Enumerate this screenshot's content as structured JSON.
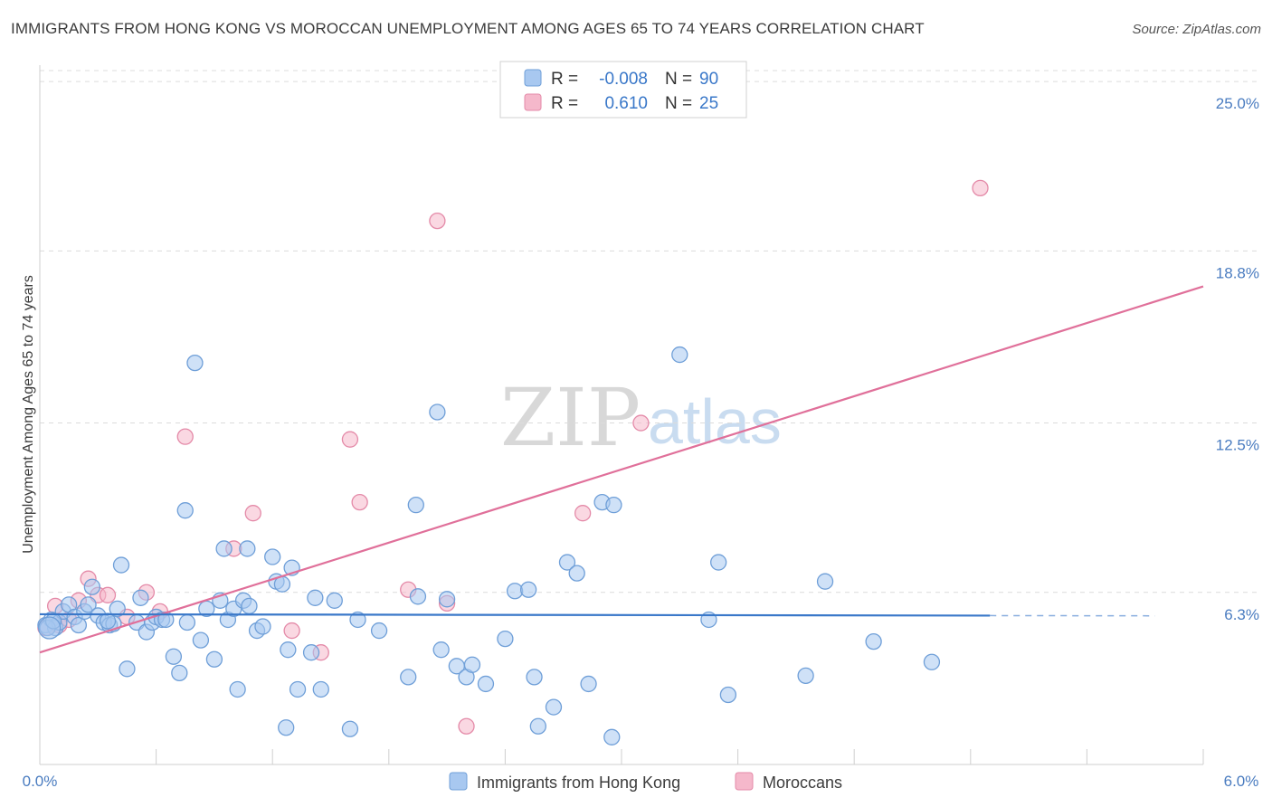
{
  "title": "IMMIGRANTS FROM HONG KONG VS MOROCCAN UNEMPLOYMENT AMONG AGES 65 TO 74 YEARS CORRELATION CHART",
  "source": "Source: ZipAtlas.com",
  "watermark": {
    "part1": "ZIP",
    "part2": "atlas"
  },
  "colors": {
    "blue_fill": "#a8c8f0",
    "blue_stroke": "#6f9fd8",
    "blue_line": "#3a78c9",
    "pink_fill": "#f5b8cb",
    "pink_stroke": "#e48aa8",
    "pink_line": "#e0709a",
    "grid": "#dcdcdc",
    "tick_text": "#4a7cc0"
  },
  "legend": {
    "rows": [
      {
        "r_label": "R =",
        "r_value": "-0.008",
        "n_label": "N =",
        "n_value": "90",
        "series": "blue"
      },
      {
        "r_label": "R =",
        "r_value": "0.610",
        "n_label": "N =",
        "n_value": "25",
        "series": "pink"
      }
    ]
  },
  "chart_data": {
    "type": "scatter",
    "title": "IMMIGRANTS FROM HONG KONG VS MOROCCAN UNEMPLOYMENT AMONG AGES 65 TO 74 YEARS CORRELATION CHART",
    "xlabel": "",
    "ylabel": "Unemployment Among Ages 65 to 74 years",
    "xlim": [
      0,
      6.0
    ],
    "ylim": [
      0,
      25.6
    ],
    "x_tick_labels": [
      "0.0%",
      "6.0%"
    ],
    "y_tick_values": [
      6.3,
      12.5,
      18.8,
      25.0
    ],
    "y_tick_labels": [
      "6.3%",
      "12.5%",
      "18.8%",
      "25.0%"
    ],
    "series": [
      {
        "name": "Immigrants from Hong Kong",
        "color": "blue",
        "trend": {
          "x0": 0.0,
          "y0": 5.5,
          "x1": 4.9,
          "y1": 5.45,
          "dash_to_x": 5.75
        },
        "points": [
          [
            0.03,
            5.1
          ],
          [
            0.06,
            5.3
          ],
          [
            0.08,
            5.0
          ],
          [
            0.1,
            5.2
          ],
          [
            0.12,
            5.6
          ],
          [
            0.15,
            5.85
          ],
          [
            0.18,
            5.4
          ],
          [
            0.2,
            5.1
          ],
          [
            0.23,
            5.6
          ],
          [
            0.25,
            5.85
          ],
          [
            0.27,
            6.5
          ],
          [
            0.3,
            5.45
          ],
          [
            0.33,
            5.2
          ],
          [
            0.36,
            5.1
          ],
          [
            0.38,
            5.15
          ],
          [
            0.4,
            5.7
          ],
          [
            0.42,
            7.3
          ],
          [
            0.45,
            3.5
          ],
          [
            0.5,
            5.2
          ],
          [
            0.52,
            6.1
          ],
          [
            0.55,
            4.85
          ],
          [
            0.58,
            5.2
          ],
          [
            0.6,
            5.4
          ],
          [
            0.63,
            5.3
          ],
          [
            0.69,
            3.95
          ],
          [
            0.72,
            3.35
          ],
          [
            0.75,
            9.3
          ],
          [
            0.76,
            5.2
          ],
          [
            0.8,
            14.7
          ],
          [
            0.83,
            4.55
          ],
          [
            0.86,
            5.7
          ],
          [
            0.9,
            3.85
          ],
          [
            0.93,
            6.0
          ],
          [
            0.95,
            7.9
          ],
          [
            0.97,
            5.3
          ],
          [
            1.0,
            5.7
          ],
          [
            1.02,
            2.75
          ],
          [
            1.05,
            6.0
          ],
          [
            1.07,
            7.9
          ],
          [
            1.12,
            4.9
          ],
          [
            1.15,
            5.05
          ],
          [
            1.2,
            7.6
          ],
          [
            1.22,
            6.7
          ],
          [
            1.25,
            6.6
          ],
          [
            1.27,
            1.35
          ],
          [
            1.28,
            4.2
          ],
          [
            1.3,
            7.2
          ],
          [
            1.33,
            2.75
          ],
          [
            1.4,
            4.1
          ],
          [
            1.42,
            6.1
          ],
          [
            1.45,
            2.75
          ],
          [
            1.52,
            6.0
          ],
          [
            1.6,
            1.3
          ],
          [
            1.64,
            5.3
          ],
          [
            1.75,
            4.9
          ],
          [
            1.9,
            3.2
          ],
          [
            1.94,
            9.5
          ],
          [
            1.95,
            6.15
          ],
          [
            2.05,
            12.9
          ],
          [
            2.07,
            4.2
          ],
          [
            2.1,
            6.05
          ],
          [
            2.15,
            3.6
          ],
          [
            2.2,
            3.2
          ],
          [
            2.23,
            3.65
          ],
          [
            2.3,
            2.95
          ],
          [
            2.4,
            4.6
          ],
          [
            2.45,
            6.35
          ],
          [
            2.52,
            6.4
          ],
          [
            2.55,
            3.2
          ],
          [
            2.57,
            1.4
          ],
          [
            2.65,
            2.1
          ],
          [
            2.72,
            7.4
          ],
          [
            2.77,
            7.0
          ],
          [
            2.83,
            2.95
          ],
          [
            2.9,
            9.6
          ],
          [
            2.95,
            1.0
          ],
          [
            2.96,
            9.5
          ],
          [
            3.3,
            15.0
          ],
          [
            3.45,
            5.3
          ],
          [
            3.5,
            7.4
          ],
          [
            3.55,
            2.55
          ],
          [
            3.95,
            3.25
          ],
          [
            4.05,
            6.7
          ],
          [
            4.3,
            4.5
          ],
          [
            4.6,
            3.75
          ],
          [
            0.04,
            5.0
          ],
          [
            0.07,
            5.25
          ],
          [
            0.35,
            5.25
          ],
          [
            0.65,
            5.3
          ],
          [
            1.08,
            5.8
          ]
        ]
      },
      {
        "name": "Moroccans",
        "color": "pink",
        "trend": {
          "x0": 0.0,
          "y0": 4.1,
          "x1": 6.0,
          "y1": 17.5
        },
        "points": [
          [
            0.03,
            5.0
          ],
          [
            0.08,
            5.8
          ],
          [
            0.1,
            5.1
          ],
          [
            0.15,
            5.3
          ],
          [
            0.2,
            6.0
          ],
          [
            0.25,
            6.8
          ],
          [
            0.3,
            6.2
          ],
          [
            0.35,
            6.2
          ],
          [
            0.45,
            5.4
          ],
          [
            0.55,
            6.3
          ],
          [
            0.62,
            5.6
          ],
          [
            0.75,
            12.0
          ],
          [
            1.0,
            7.9
          ],
          [
            1.1,
            9.2
          ],
          [
            1.3,
            4.9
          ],
          [
            1.45,
            4.1
          ],
          [
            1.6,
            11.9
          ],
          [
            1.65,
            9.6
          ],
          [
            1.9,
            6.4
          ],
          [
            2.05,
            19.9
          ],
          [
            2.1,
            5.9
          ],
          [
            2.2,
            1.4
          ],
          [
            2.8,
            9.2
          ],
          [
            3.1,
            12.5
          ],
          [
            4.85,
            21.1
          ]
        ]
      }
    ]
  },
  "bottom_legend": {
    "items": [
      {
        "label": "Immigrants from Hong Kong",
        "series": "blue"
      },
      {
        "label": "Moroccans",
        "series": "pink"
      }
    ]
  }
}
